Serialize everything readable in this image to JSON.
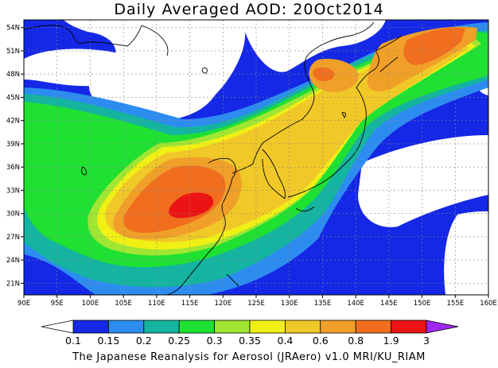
{
  "title": "Daily Averaged AOD: 20Oct2014",
  "footer": "The Japanese Reanalysis for Aerosol (JRAero) v1.0 MRI/KU_RIAM",
  "map": {
    "lon_range": [
      90,
      160
    ],
    "lat_range": [
      19.5,
      55
    ],
    "lon_ticks": [
      "90E",
      "95E",
      "100E",
      "105E",
      "110E",
      "115E",
      "120E",
      "125E",
      "130E",
      "135E",
      "140E",
      "145E",
      "150E",
      "155E",
      "160E"
    ],
    "lat_ticks": [
      "54N",
      "51N",
      "48N",
      "45N",
      "42N",
      "39N",
      "36N",
      "33N",
      "30N",
      "27N",
      "24N",
      "21N"
    ]
  },
  "colorbar": {
    "labels": [
      "0.1",
      "0.15",
      "0.2",
      "0.25",
      "0.3",
      "0.35",
      "0.4",
      "0.6",
      "0.8",
      "1.9",
      "3"
    ],
    "colors": [
      "#ffffff",
      "#1428e6",
      "#2d8cf0",
      "#14b4a0",
      "#1ee132",
      "#a0e632",
      "#f0f014",
      "#f0c828",
      "#f0a028",
      "#f06e1e",
      "#eb1414",
      "#a028f0"
    ]
  },
  "level_colors": {
    "c1": "#1428e6",
    "c2": "#2d8cf0",
    "c3": "#14b4a0",
    "c4": "#1ee132",
    "c5": "#a0e632",
    "c6": "#f0f014",
    "c7": "#f0c828",
    "c8": "#f0a028",
    "c9": "#f06e1e",
    "c10": "#eb1414"
  }
}
